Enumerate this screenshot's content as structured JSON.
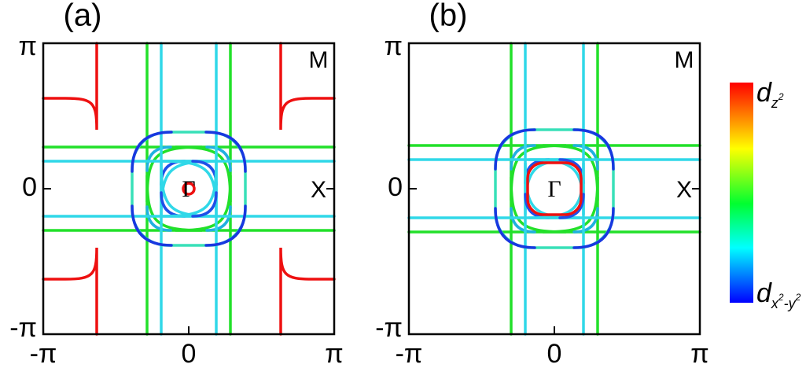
{
  "panels": [
    {
      "label": "(a)",
      "xticks": [
        "-π",
        "0",
        "π"
      ],
      "yticks": [
        "π",
        "0",
        "-π"
      ],
      "corner_label": "M",
      "edge_label": "X",
      "center_label": "Γ"
    },
    {
      "label": "(b)",
      "xticks": [
        "-π",
        "0",
        "π"
      ],
      "yticks": [
        "π",
        "0",
        "-π"
      ],
      "corner_label": "M",
      "edge_label": "X",
      "center_label": "Γ"
    }
  ],
  "colorbar": {
    "top": {
      "main": "d",
      "sub": "z",
      "sup": "2"
    },
    "bottom": {
      "main": "d",
      "sub": "x",
      "sup1": "2",
      "mid": "-y",
      "sup2": "2"
    }
  }
}
